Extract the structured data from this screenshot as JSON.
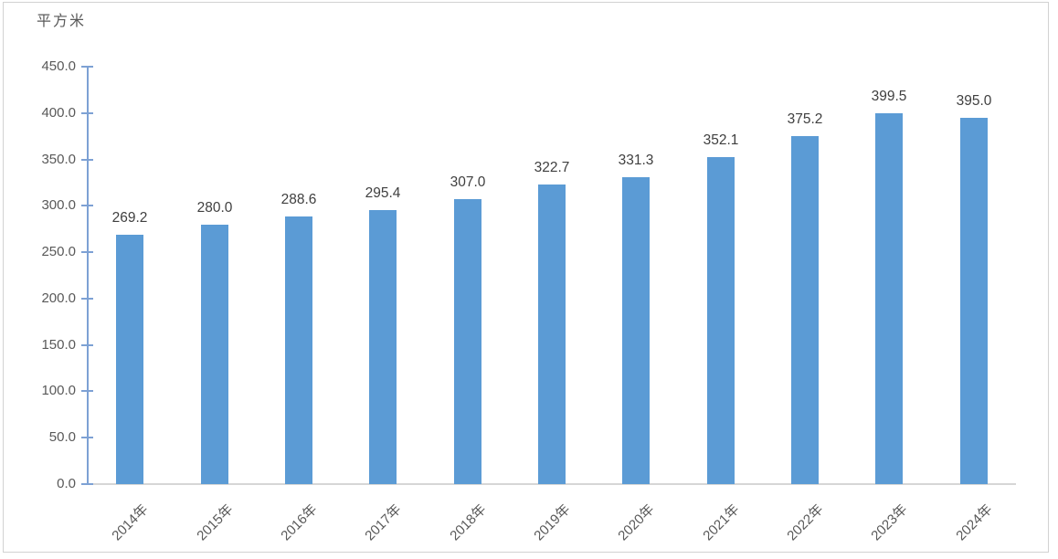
{
  "chart": {
    "unit_label": "平方米",
    "bar_color": "#5B9BD5",
    "y_axis_color": "#7DA1D4",
    "x_axis_color": "#D6D6D6",
    "tick_label_color": "#595959",
    "data_label_color": "#3F3F3F",
    "frame_border_color": "#D2D2D2"
  },
  "chart_data": {
    "type": "bar",
    "title": "",
    "unit_label": "平方米",
    "xlabel": "",
    "ylabel": "平方米",
    "categories": [
      "2014年",
      "2015年",
      "2016年",
      "2017年",
      "2018年",
      "2019年",
      "2020年",
      "2021年",
      "2022年",
      "2023年",
      "2024年"
    ],
    "values": [
      269.2,
      280.0,
      288.6,
      295.4,
      307.0,
      322.7,
      331.3,
      352.1,
      375.2,
      399.5,
      395.0
    ],
    "value_labels": [
      "269.2",
      "280.0",
      "288.6",
      "295.4",
      "307.0",
      "322.7",
      "331.3",
      "352.1",
      "375.2",
      "399.5",
      "395.0"
    ],
    "ylim": [
      0,
      450
    ],
    "y_tick_step": 50,
    "y_ticks": [
      0,
      50,
      100,
      150,
      200,
      250,
      300,
      350,
      400,
      450
    ],
    "y_tick_labels": [
      "0.0",
      "50.0",
      "100.0",
      "150.0",
      "200.0",
      "250.0",
      "300.0",
      "350.0",
      "400.0",
      "450.0"
    ],
    "grid": false,
    "legend": "none",
    "data_labels": "above-bars",
    "x_tick_rotation_deg": 45
  }
}
